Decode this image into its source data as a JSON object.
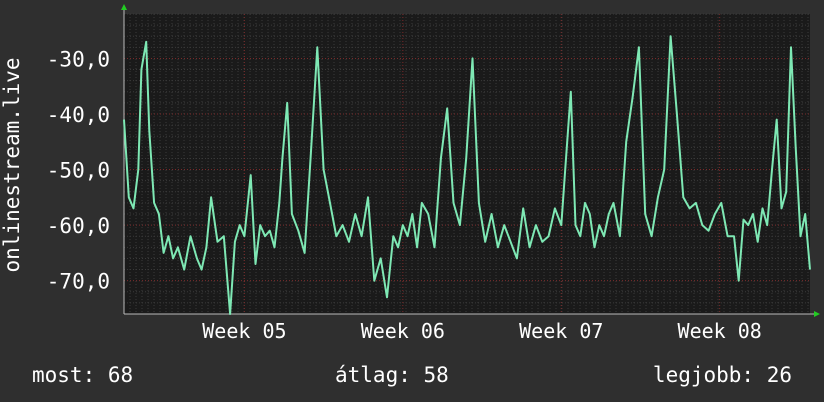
{
  "chart_data": {
    "type": "line",
    "ylabel": "onlinestream.live",
    "xlabel": "",
    "title": "",
    "ylim": [
      -76,
      -22
    ],
    "y_ticks": [
      -30,
      -40,
      -50,
      -60,
      -70
    ],
    "y_tick_labels": [
      "-30,0",
      "-40,0",
      "-50,0",
      "-60,0",
      "-70,0"
    ],
    "x_ticks": [
      {
        "label": "Week 05",
        "x": 5
      },
      {
        "label": "Week 06",
        "x": 6
      },
      {
        "label": "Week 07",
        "x": 7
      },
      {
        "label": "Week 08",
        "x": 8
      }
    ],
    "xlim": [
      4.24,
      8.57
    ],
    "grid": true,
    "series": [
      {
        "color": "#7ee8b4",
        "x": [
          4.24,
          4.27,
          4.3,
          4.33,
          4.35,
          4.38,
          4.4,
          4.43,
          4.46,
          4.49,
          4.52,
          4.55,
          4.58,
          4.62,
          4.66,
          4.7,
          4.73,
          4.76,
          4.79,
          4.83,
          4.87,
          4.91,
          4.94,
          4.97,
          5.0,
          5.04,
          5.07,
          5.1,
          5.13,
          5.16,
          5.19,
          5.22,
          5.24,
          5.27,
          5.3,
          5.34,
          5.38,
          5.42,
          5.46,
          5.5,
          5.54,
          5.58,
          5.62,
          5.66,
          5.7,
          5.74,
          5.78,
          5.82,
          5.86,
          5.9,
          5.94,
          5.97,
          6.0,
          6.03,
          6.06,
          6.09,
          6.12,
          6.16,
          6.2,
          6.24,
          6.28,
          6.32,
          6.36,
          6.4,
          6.44,
          6.48,
          6.52,
          6.56,
          6.6,
          6.64,
          6.68,
          6.72,
          6.76,
          6.8,
          6.84,
          6.88,
          6.92,
          6.96,
          7.0,
          7.03,
          7.06,
          7.09,
          7.12,
          7.15,
          7.18,
          7.21,
          7.24,
          7.27,
          7.3,
          7.33,
          7.37,
          7.41,
          7.45,
          7.49,
          7.53,
          7.57,
          7.61,
          7.65,
          7.69,
          7.73,
          7.77,
          7.81,
          7.85,
          7.89,
          7.93,
          7.97,
          8.01,
          8.05,
          8.09,
          8.12,
          8.15,
          8.18,
          8.21,
          8.24,
          8.27,
          8.3,
          8.33,
          8.36,
          8.39,
          8.42,
          8.45,
          8.48,
          8.51,
          8.54,
          8.57
        ],
        "y": [
          -41,
          -55,
          -57,
          -50,
          -32,
          -27,
          -43,
          -56,
          -58,
          -65,
          -62,
          -66,
          -64,
          -68,
          -62,
          -66,
          -68,
          -64,
          -55,
          -63,
          -62,
          -76,
          -63,
          -60,
          -62,
          -51,
          -67,
          -60,
          -62,
          -61,
          -64,
          -56,
          -48,
          -38,
          -58,
          -61,
          -65,
          -47,
          -28,
          -50,
          -56,
          -62,
          -60,
          -63,
          -58,
          -62,
          -55,
          -70,
          -66,
          -73,
          -62,
          -64,
          -60,
          -62,
          -58,
          -64,
          -56,
          -58,
          -64,
          -48,
          -39,
          -56,
          -60,
          -48,
          -30,
          -56,
          -63,
          -58,
          -64,
          -60,
          -63,
          -66,
          -57,
          -64,
          -60,
          -63,
          -62,
          -57,
          -60,
          -48,
          -36,
          -60,
          -62,
          -56,
          -58,
          -64,
          -60,
          -62,
          -58,
          -56,
          -62,
          -45,
          -37,
          -28,
          -58,
          -62,
          -55,
          -50,
          -26,
          -40,
          -55,
          -57,
          -56,
          -60,
          -61,
          -58,
          -56,
          -62,
          -62,
          -70,
          -59,
          -60,
          -58,
          -63,
          -57,
          -60,
          -50,
          -41,
          -57,
          -54,
          -28,
          -46,
          -62,
          -58,
          -68
        ]
      }
    ]
  },
  "footer": {
    "now": "most: 68",
    "avg": "átlag: 58",
    "best": "legjobb: 26"
  },
  "colors": {
    "background": "#2f2f2f",
    "plot_background": "#1a1a1a",
    "grid_minor": "#3a3a3a",
    "grid_major": "#7a2a2a",
    "line": "#7ee8b4",
    "text": "#ffffff",
    "arrow": "#22cc22"
  }
}
